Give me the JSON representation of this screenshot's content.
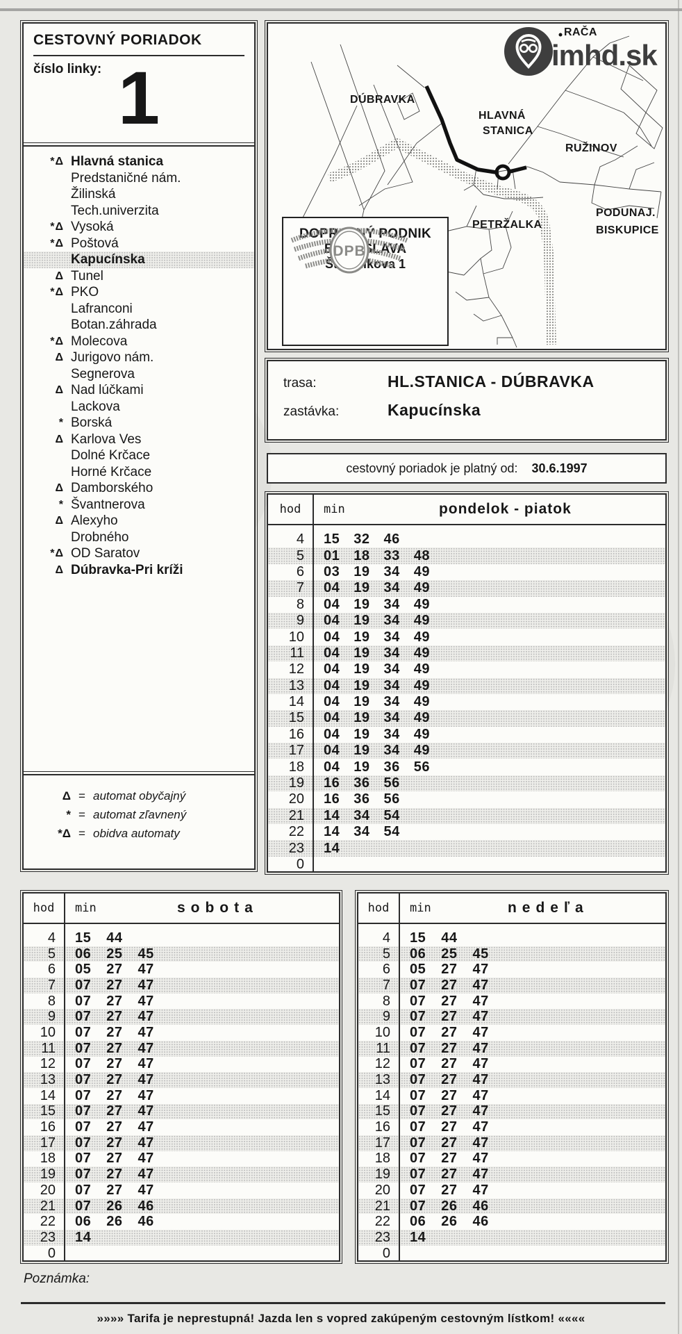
{
  "header": {
    "title": "CESTOVNÝ PORIADOK",
    "line_label": "číslo linky:",
    "line_number": "1"
  },
  "stops": {
    "items": [
      {
        "sym": "*Δ",
        "name": "Hlavná stanica",
        "bold": true,
        "highlight": false
      },
      {
        "sym": "",
        "name": "Predstaničné nám.",
        "bold": false,
        "highlight": false
      },
      {
        "sym": "",
        "name": "Žilinská",
        "bold": false,
        "highlight": false
      },
      {
        "sym": "",
        "name": "Tech.univerzita",
        "bold": false,
        "highlight": false
      },
      {
        "sym": "*Δ",
        "name": "Vysoká",
        "bold": false,
        "highlight": false
      },
      {
        "sym": "*Δ",
        "name": "Poštová",
        "bold": false,
        "highlight": false
      },
      {
        "sym": "",
        "name": "Kapucínska",
        "bold": true,
        "highlight": true
      },
      {
        "sym": "Δ",
        "name": "Tunel",
        "bold": false,
        "highlight": false
      },
      {
        "sym": "*Δ",
        "name": "PKO",
        "bold": false,
        "highlight": false
      },
      {
        "sym": "",
        "name": "Lafranconi",
        "bold": false,
        "highlight": false
      },
      {
        "sym": "",
        "name": "Botan.záhrada",
        "bold": false,
        "highlight": false
      },
      {
        "sym": "*Δ",
        "name": "Molecova",
        "bold": false,
        "highlight": false
      },
      {
        "sym": "Δ",
        "name": "Jurigovo nám.",
        "bold": false,
        "highlight": false
      },
      {
        "sym": "",
        "name": "Segnerova",
        "bold": false,
        "highlight": false
      },
      {
        "sym": "Δ",
        "name": "Nad lúčkami",
        "bold": false,
        "highlight": false
      },
      {
        "sym": "",
        "name": "Lackova",
        "bold": false,
        "highlight": false
      },
      {
        "sym": "*",
        "name": "Borská",
        "bold": false,
        "highlight": false
      },
      {
        "sym": "Δ",
        "name": "Karlova Ves",
        "bold": false,
        "highlight": false
      },
      {
        "sym": "",
        "name": "Dolné Krčace",
        "bold": false,
        "highlight": false
      },
      {
        "sym": "",
        "name": "Horné Krčace",
        "bold": false,
        "highlight": false
      },
      {
        "sym": "Δ",
        "name": "Damborského",
        "bold": false,
        "highlight": false
      },
      {
        "sym": "*",
        "name": "Švantnerova",
        "bold": false,
        "highlight": false
      },
      {
        "sym": "Δ",
        "name": "Alexyho",
        "bold": false,
        "highlight": false
      },
      {
        "sym": "",
        "name": "Drobného",
        "bold": false,
        "highlight": false
      },
      {
        "sym": "*Δ",
        "name": "OD Saratov",
        "bold": false,
        "highlight": false
      },
      {
        "sym": "Δ",
        "name": "Dúbravka-Pri kríži",
        "bold": true,
        "highlight": false
      }
    ]
  },
  "stop_legend": {
    "items": [
      {
        "sym": "Δ",
        "eq": "=",
        "label": "automat obyčajný"
      },
      {
        "sym": "*",
        "eq": "=",
        "label": "automat zľavnený"
      },
      {
        "sym": "*Δ",
        "eq": "=",
        "label": "obidva automaty"
      }
    ]
  },
  "map": {
    "labels": {
      "raca": "RAČA",
      "dubravka": "DÚBRAVKA",
      "hlavna1": "HLAVNÁ",
      "hlavna2": "STANICA",
      "ruzinov": "RUŽINOV",
      "petrzalka": "PETRŽALKA",
      "podunaj1": "PODUNAJ.",
      "podunaj2": "BISKUPICE"
    }
  },
  "dpb": {
    "l1": "DOPRAVNÝ PODNIK",
    "l2": "BRATISLAVA",
    "l3": "Štefánikova 1",
    "logo": "DPB"
  },
  "brand": {
    "text": "imhd.sk"
  },
  "route": {
    "trasa_label": "trasa:",
    "trasa": "HL.STANICA - DÚBRAVKA",
    "stop_label": "zastávka:",
    "stop": "Kapucínska"
  },
  "validity": {
    "label": "cestovný poriadok je platný od:",
    "date": "30.6.1997"
  },
  "tables": {
    "weekday": {
      "hod_label": "hod",
      "min_label": "min",
      "title": "pondelok - piatok",
      "rows": [
        {
          "h": "4",
          "m": [
            "15",
            "32",
            "46"
          ]
        },
        {
          "h": "5",
          "m": [
            "01",
            "18",
            "33",
            "48"
          ]
        },
        {
          "h": "6",
          "m": [
            "03",
            "19",
            "34",
            "49"
          ]
        },
        {
          "h": "7",
          "m": [
            "04",
            "19",
            "34",
            "49"
          ]
        },
        {
          "h": "8",
          "m": [
            "04",
            "19",
            "34",
            "49"
          ]
        },
        {
          "h": "9",
          "m": [
            "04",
            "19",
            "34",
            "49"
          ]
        },
        {
          "h": "10",
          "m": [
            "04",
            "19",
            "34",
            "49"
          ]
        },
        {
          "h": "11",
          "m": [
            "04",
            "19",
            "34",
            "49"
          ]
        },
        {
          "h": "12",
          "m": [
            "04",
            "19",
            "34",
            "49"
          ]
        },
        {
          "h": "13",
          "m": [
            "04",
            "19",
            "34",
            "49"
          ]
        },
        {
          "h": "14",
          "m": [
            "04",
            "19",
            "34",
            "49"
          ]
        },
        {
          "h": "15",
          "m": [
            "04",
            "19",
            "34",
            "49"
          ]
        },
        {
          "h": "16",
          "m": [
            "04",
            "19",
            "34",
            "49"
          ]
        },
        {
          "h": "17",
          "m": [
            "04",
            "19",
            "34",
            "49"
          ]
        },
        {
          "h": "18",
          "m": [
            "04",
            "19",
            "36",
            "56"
          ]
        },
        {
          "h": "19",
          "m": [
            "16",
            "36",
            "56"
          ]
        },
        {
          "h": "20",
          "m": [
            "16",
            "36",
            "56"
          ]
        },
        {
          "h": "21",
          "m": [
            "14",
            "34",
            "54"
          ]
        },
        {
          "h": "22",
          "m": [
            "14",
            "34",
            "54"
          ]
        },
        {
          "h": "23",
          "m": [
            "14"
          ]
        },
        {
          "h": "0",
          "m": []
        }
      ]
    },
    "saturday": {
      "hod_label": "hod",
      "min_label": "min",
      "title": "sobota",
      "rows": [
        {
          "h": "4",
          "m": [
            "15",
            "44"
          ]
        },
        {
          "h": "5",
          "m": [
            "06",
            "25",
            "45"
          ]
        },
        {
          "h": "6",
          "m": [
            "05",
            "27",
            "47"
          ]
        },
        {
          "h": "7",
          "m": [
            "07",
            "27",
            "47"
          ]
        },
        {
          "h": "8",
          "m": [
            "07",
            "27",
            "47"
          ]
        },
        {
          "h": "9",
          "m": [
            "07",
            "27",
            "47"
          ]
        },
        {
          "h": "10",
          "m": [
            "07",
            "27",
            "47"
          ]
        },
        {
          "h": "11",
          "m": [
            "07",
            "27",
            "47"
          ]
        },
        {
          "h": "12",
          "m": [
            "07",
            "27",
            "47"
          ]
        },
        {
          "h": "13",
          "m": [
            "07",
            "27",
            "47"
          ]
        },
        {
          "h": "14",
          "m": [
            "07",
            "27",
            "47"
          ]
        },
        {
          "h": "15",
          "m": [
            "07",
            "27",
            "47"
          ]
        },
        {
          "h": "16",
          "m": [
            "07",
            "27",
            "47"
          ]
        },
        {
          "h": "17",
          "m": [
            "07",
            "27",
            "47"
          ]
        },
        {
          "h": "18",
          "m": [
            "07",
            "27",
            "47"
          ]
        },
        {
          "h": "19",
          "m": [
            "07",
            "27",
            "47"
          ]
        },
        {
          "h": "20",
          "m": [
            "07",
            "27",
            "47"
          ]
        },
        {
          "h": "21",
          "m": [
            "07",
            "26",
            "46"
          ]
        },
        {
          "h": "22",
          "m": [
            "06",
            "26",
            "46"
          ]
        },
        {
          "h": "23",
          "m": [
            "14"
          ]
        },
        {
          "h": "0",
          "m": []
        }
      ]
    },
    "sunday": {
      "hod_label": "hod",
      "min_label": "min",
      "title": "nedeľa",
      "rows": [
        {
          "h": "4",
          "m": [
            "15",
            "44"
          ]
        },
        {
          "h": "5",
          "m": [
            "06",
            "25",
            "45"
          ]
        },
        {
          "h": "6",
          "m": [
            "05",
            "27",
            "47"
          ]
        },
        {
          "h": "7",
          "m": [
            "07",
            "27",
            "47"
          ]
        },
        {
          "h": "8",
          "m": [
            "07",
            "27",
            "47"
          ]
        },
        {
          "h": "9",
          "m": [
            "07",
            "27",
            "47"
          ]
        },
        {
          "h": "10",
          "m": [
            "07",
            "27",
            "47"
          ]
        },
        {
          "h": "11",
          "m": [
            "07",
            "27",
            "47"
          ]
        },
        {
          "h": "12",
          "m": [
            "07",
            "27",
            "47"
          ]
        },
        {
          "h": "13",
          "m": [
            "07",
            "27",
            "47"
          ]
        },
        {
          "h": "14",
          "m": [
            "07",
            "27",
            "47"
          ]
        },
        {
          "h": "15",
          "m": [
            "07",
            "27",
            "47"
          ]
        },
        {
          "h": "16",
          "m": [
            "07",
            "27",
            "47"
          ]
        },
        {
          "h": "17",
          "m": [
            "07",
            "27",
            "47"
          ]
        },
        {
          "h": "18",
          "m": [
            "07",
            "27",
            "47"
          ]
        },
        {
          "h": "19",
          "m": [
            "07",
            "27",
            "47"
          ]
        },
        {
          "h": "20",
          "m": [
            "07",
            "27",
            "47"
          ]
        },
        {
          "h": "21",
          "m": [
            "07",
            "26",
            "46"
          ]
        },
        {
          "h": "22",
          "m": [
            "06",
            "26",
            "46"
          ]
        },
        {
          "h": "23",
          "m": [
            "14"
          ]
        },
        {
          "h": "0",
          "m": []
        }
      ]
    }
  },
  "footer": {
    "note": "Poznámka:",
    "tariff": "»»»»  Tarifa je neprestupná!  Jazda len s vopred zakúpeným cestovným lístkom!  ««««"
  }
}
